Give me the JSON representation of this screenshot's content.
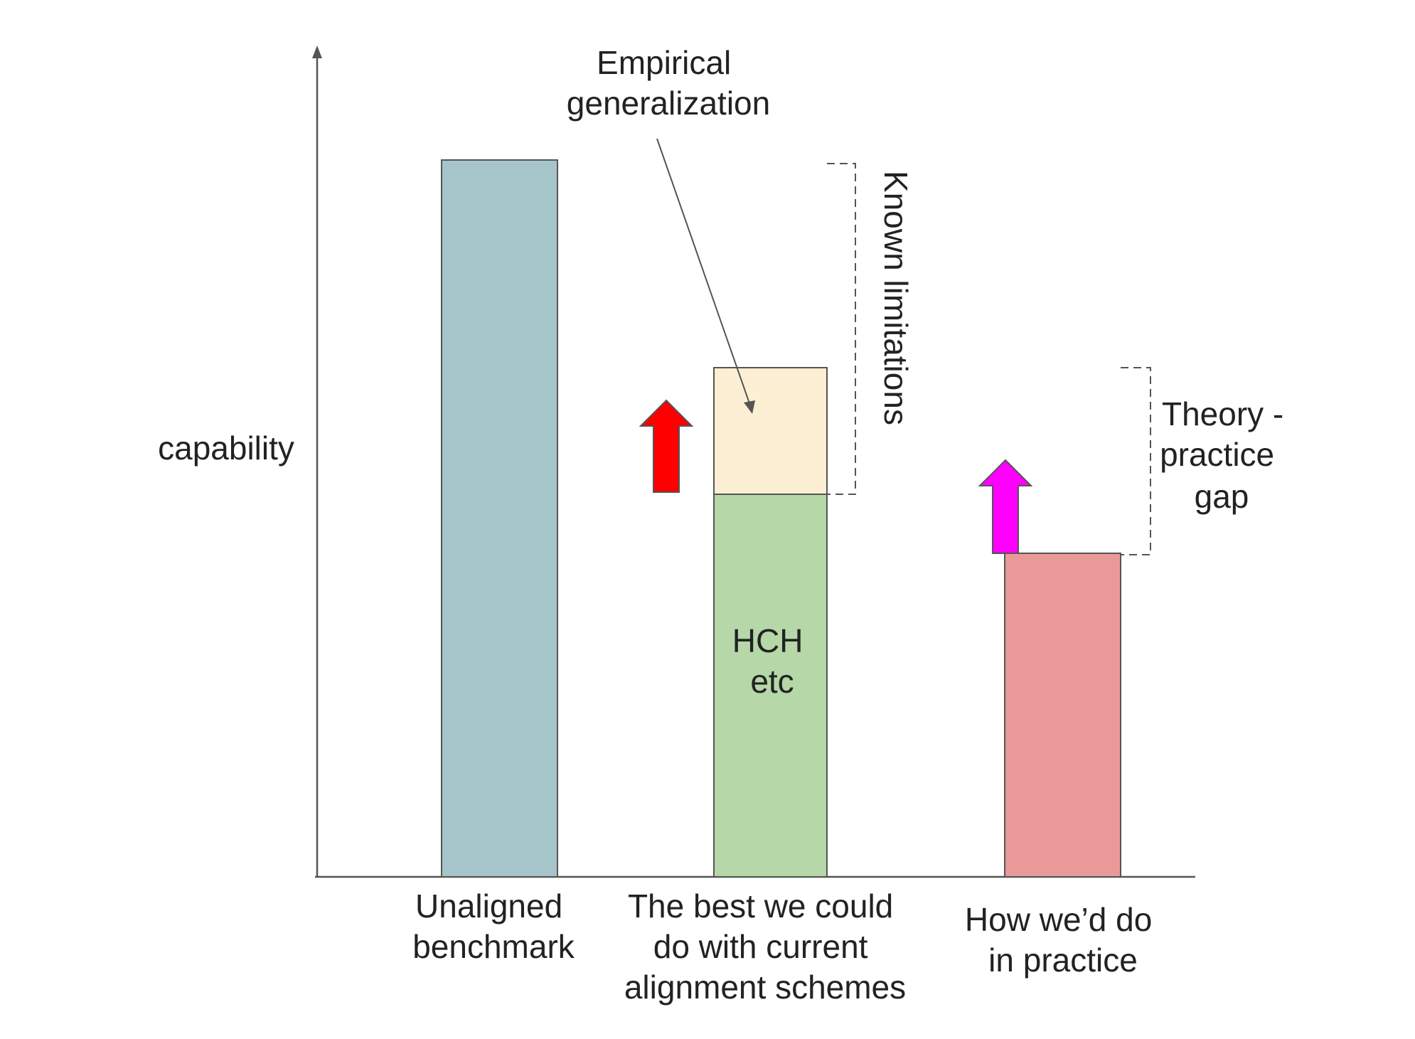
{
  "y_axis_label": "capability",
  "bars": [
    {
      "name": "unaligned-benchmark",
      "label_lines": [
        "Unaligned",
        "benchmark"
      ],
      "color": "#a6c5ca"
    },
    {
      "name": "current-alignment-schemes",
      "label_lines": [
        "The best we could",
        "do with current",
        "alignment schemes"
      ],
      "color": "#b6d7a8",
      "inner_label_lines": [
        "HCH",
        "etc"
      ],
      "top_segment_color": "#fdefd3"
    },
    {
      "name": "in-practice",
      "label_lines": [
        "How we’d do",
        "in practice"
      ],
      "color": "#ea9999"
    }
  ],
  "annotations": {
    "empirical_generalization": [
      "Empirical",
      "generalization"
    ],
    "known_limitations": "Known limitations",
    "theory_practice_gap": [
      "Theory -",
      "practice",
      "gap"
    ]
  },
  "colors": {
    "axis": "#555555",
    "red_arrow": "#ff0000",
    "magenta_arrow": "#ff00ff",
    "outline": "#555555"
  }
}
